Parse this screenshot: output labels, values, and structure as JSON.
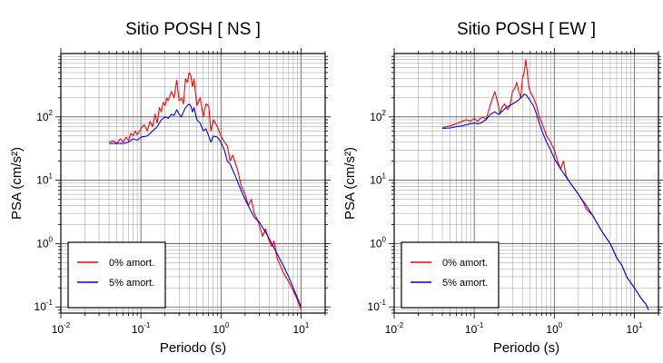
{
  "chart_data": [
    {
      "type": "line",
      "title": "Sitio POSH [ NS ]",
      "xlabel": "Periodo (s)",
      "ylabel": "PSA (cm/s²)",
      "xscale": "log",
      "yscale": "log",
      "xlim": [
        0.01,
        20
      ],
      "ylim": [
        0.08,
        1000
      ],
      "grid": true,
      "legend_position": "bottom-left",
      "x_ticks": [
        {
          "mant": "10",
          "exp": "-2"
        },
        {
          "mant": "10",
          "exp": "-1"
        },
        {
          "mant": "10",
          "exp": "0"
        },
        {
          "mant": "10",
          "exp": "1"
        }
      ],
      "y_ticks": [
        {
          "mant": "10",
          "exp": "-1"
        },
        {
          "mant": "10",
          "exp": "0"
        },
        {
          "mant": "10",
          "exp": "1"
        },
        {
          "mant": "10",
          "exp": "2"
        }
      ],
      "series": [
        {
          "name": "0% amort.",
          "color": "#ff0000",
          "points": [
            [
              0.04,
              40
            ],
            [
              0.045,
              42
            ],
            [
              0.05,
              38
            ],
            [
              0.055,
              45
            ],
            [
              0.06,
              40
            ],
            [
              0.065,
              48
            ],
            [
              0.07,
              42
            ],
            [
              0.075,
              55
            ],
            [
              0.08,
              50
            ],
            [
              0.085,
              60
            ],
            [
              0.09,
              52
            ],
            [
              0.1,
              65
            ],
            [
              0.11,
              75
            ],
            [
              0.12,
              60
            ],
            [
              0.13,
              85
            ],
            [
              0.14,
              70
            ],
            [
              0.15,
              110
            ],
            [
              0.16,
              80
            ],
            [
              0.17,
              140
            ],
            [
              0.18,
              120
            ],
            [
              0.19,
              170
            ],
            [
              0.2,
              150
            ],
            [
              0.21,
              200
            ],
            [
              0.22,
              180
            ],
            [
              0.24,
              250
            ],
            [
              0.26,
              200
            ],
            [
              0.28,
              380
            ],
            [
              0.3,
              180
            ],
            [
              0.32,
              200
            ],
            [
              0.34,
              160
            ],
            [
              0.36,
              400
            ],
            [
              0.38,
              350
            ],
            [
              0.4,
              500
            ],
            [
              0.42,
              450
            ],
            [
              0.44,
              300
            ],
            [
              0.46,
              400
            ],
            [
              0.5,
              150
            ],
            [
              0.55,
              200
            ],
            [
              0.6,
              100
            ],
            [
              0.65,
              160
            ],
            [
              0.7,
              150
            ],
            [
              0.75,
              60
            ],
            [
              0.8,
              90
            ],
            [
              0.85,
              80
            ],
            [
              0.9,
              70
            ],
            [
              1.0,
              50
            ],
            [
              1.1,
              40
            ],
            [
              1.2,
              35
            ],
            [
              1.3,
              20
            ],
            [
              1.4,
              25
            ],
            [
              1.6,
              15
            ],
            [
              1.8,
              8
            ],
            [
              2.0,
              6
            ],
            [
              2.2,
              4
            ],
            [
              2.4,
              5
            ],
            [
              2.6,
              3
            ],
            [
              2.8,
              2.5
            ],
            [
              3.0,
              2
            ],
            [
              3.3,
              1.3
            ],
            [
              3.6,
              1.7
            ],
            [
              4.0,
              1.1
            ],
            [
              4.3,
              0.9
            ],
            [
              4.6,
              1.1
            ],
            [
              5.0,
              0.6
            ],
            [
              6.0,
              0.35
            ],
            [
              7.0,
              0.25
            ],
            [
              8.0,
              0.18
            ],
            [
              9.0,
              0.13
            ],
            [
              10.0,
              0.09
            ]
          ]
        },
        {
          "name": "5% amort.",
          "color": "#0000ff",
          "points": [
            [
              0.04,
              38
            ],
            [
              0.05,
              38
            ],
            [
              0.06,
              38
            ],
            [
              0.07,
              40
            ],
            [
              0.08,
              45
            ],
            [
              0.09,
              43
            ],
            [
              0.1,
              48
            ],
            [
              0.12,
              50
            ],
            [
              0.14,
              60
            ],
            [
              0.16,
              70
            ],
            [
              0.18,
              90
            ],
            [
              0.2,
              100
            ],
            [
              0.22,
              95
            ],
            [
              0.24,
              110
            ],
            [
              0.26,
              105
            ],
            [
              0.28,
              130
            ],
            [
              0.3,
              110
            ],
            [
              0.32,
              100
            ],
            [
              0.34,
              120
            ],
            [
              0.36,
              140
            ],
            [
              0.38,
              150
            ],
            [
              0.4,
              160
            ],
            [
              0.42,
              150
            ],
            [
              0.44,
              120
            ],
            [
              0.46,
              140
            ],
            [
              0.5,
              90
            ],
            [
              0.55,
              80
            ],
            [
              0.6,
              60
            ],
            [
              0.65,
              65
            ],
            [
              0.7,
              50
            ],
            [
              0.75,
              40
            ],
            [
              0.8,
              50
            ],
            [
              0.9,
              48
            ],
            [
              1.0,
              40
            ],
            [
              1.1,
              30
            ],
            [
              1.2,
              20
            ],
            [
              1.3,
              18
            ],
            [
              1.5,
              12
            ],
            [
              1.7,
              8
            ],
            [
              2.0,
              5
            ],
            [
              2.3,
              3.5
            ],
            [
              2.6,
              2.6
            ],
            [
              3.0,
              2.2
            ],
            [
              3.5,
              1.6
            ],
            [
              4.0,
              1.2
            ],
            [
              4.5,
              0.9
            ],
            [
              5.0,
              0.7
            ],
            [
              6.0,
              0.45
            ],
            [
              7.0,
              0.3
            ],
            [
              8.0,
              0.2
            ],
            [
              9.0,
              0.14
            ],
            [
              10.0,
              0.1
            ]
          ]
        }
      ]
    },
    {
      "type": "line",
      "title": "Sitio POSH [ EW ]",
      "xlabel": "Periodo (s)",
      "ylabel": "PSA (cm/s²)",
      "xscale": "log",
      "yscale": "log",
      "xlim": [
        0.01,
        20
      ],
      "ylim": [
        0.08,
        1000
      ],
      "grid": true,
      "legend_position": "bottom-left",
      "x_ticks": [
        {
          "mant": "10",
          "exp": "-2"
        },
        {
          "mant": "10",
          "exp": "-1"
        },
        {
          "mant": "10",
          "exp": "0"
        },
        {
          "mant": "10",
          "exp": "1"
        }
      ],
      "y_ticks": [
        {
          "mant": "10",
          "exp": "-1"
        },
        {
          "mant": "10",
          "exp": "0"
        },
        {
          "mant": "10",
          "exp": "1"
        },
        {
          "mant": "10",
          "exp": "2"
        }
      ],
      "series": [
        {
          "name": "0% amort.",
          "color": "#ff0000",
          "points": [
            [
              0.04,
              68
            ],
            [
              0.05,
              72
            ],
            [
              0.06,
              78
            ],
            [
              0.07,
              85
            ],
            [
              0.08,
              90
            ],
            [
              0.09,
              85
            ],
            [
              0.1,
              95
            ],
            [
              0.11,
              85
            ],
            [
              0.12,
              95
            ],
            [
              0.13,
              100
            ],
            [
              0.14,
              90
            ],
            [
              0.15,
              120
            ],
            [
              0.16,
              160
            ],
            [
              0.17,
              200
            ],
            [
              0.18,
              250
            ],
            [
              0.19,
              200
            ],
            [
              0.2,
              150
            ],
            [
              0.21,
              110
            ],
            [
              0.22,
              140
            ],
            [
              0.24,
              160
            ],
            [
              0.26,
              130
            ],
            [
              0.28,
              150
            ],
            [
              0.3,
              250
            ],
            [
              0.32,
              280
            ],
            [
              0.34,
              350
            ],
            [
              0.36,
              250
            ],
            [
              0.38,
              200
            ],
            [
              0.4,
              400
            ],
            [
              0.42,
              500
            ],
            [
              0.44,
              800
            ],
            [
              0.46,
              500
            ],
            [
              0.48,
              300
            ],
            [
              0.5,
              250
            ],
            [
              0.55,
              200
            ],
            [
              0.6,
              150
            ],
            [
              0.65,
              100
            ],
            [
              0.7,
              80
            ],
            [
              0.8,
              50
            ],
            [
              0.9,
              40
            ],
            [
              1.0,
              30
            ],
            [
              1.1,
              20
            ],
            [
              1.2,
              15
            ],
            [
              1.3,
              20
            ],
            [
              1.4,
              12
            ],
            [
              1.5,
              10
            ],
            [
              1.7,
              8
            ],
            [
              2.0,
              6
            ],
            [
              2.3,
              4.5
            ],
            [
              2.5,
              3.5
            ],
            [
              3.0,
              2.8
            ],
            [
              3.5,
              2.0
            ],
            [
              4.0,
              1.5
            ],
            [
              5.0,
              1.0
            ],
            [
              6.0,
              0.6
            ],
            [
              7.0,
              0.45
            ],
            [
              8.0,
              0.3
            ],
            [
              10.0,
              0.2
            ],
            [
              12.0,
              0.14
            ],
            [
              14.0,
              0.11
            ],
            [
              15.0,
              0.09
            ]
          ]
        },
        {
          "name": "5% amort.",
          "color": "#0000ff",
          "points": [
            [
              0.04,
              66
            ],
            [
              0.05,
              67
            ],
            [
              0.06,
              70
            ],
            [
              0.07,
              72
            ],
            [
              0.08,
              75
            ],
            [
              0.09,
              78
            ],
            [
              0.1,
              80
            ],
            [
              0.11,
              78
            ],
            [
              0.12,
              80
            ],
            [
              0.14,
              90
            ],
            [
              0.16,
              110
            ],
            [
              0.18,
              120
            ],
            [
              0.2,
              110
            ],
            [
              0.22,
              120
            ],
            [
              0.25,
              140
            ],
            [
              0.3,
              160
            ],
            [
              0.35,
              180
            ],
            [
              0.4,
              210
            ],
            [
              0.42,
              230
            ],
            [
              0.45,
              220
            ],
            [
              0.5,
              180
            ],
            [
              0.55,
              150
            ],
            [
              0.6,
              110
            ],
            [
              0.65,
              80
            ],
            [
              0.7,
              60
            ],
            [
              0.8,
              40
            ],
            [
              0.9,
              30
            ],
            [
              1.0,
              22
            ],
            [
              1.2,
              15
            ],
            [
              1.5,
              10
            ],
            [
              1.7,
              8
            ],
            [
              2.0,
              6
            ],
            [
              2.5,
              4
            ],
            [
              3.0,
              2.8
            ],
            [
              3.5,
              2.0
            ],
            [
              4.0,
              1.5
            ],
            [
              5.0,
              1.0
            ],
            [
              6.0,
              0.6
            ],
            [
              7.0,
              0.45
            ],
            [
              8.0,
              0.3
            ],
            [
              10.0,
              0.2
            ],
            [
              12.0,
              0.14
            ],
            [
              14.0,
              0.11
            ],
            [
              15.0,
              0.09
            ]
          ]
        }
      ]
    }
  ]
}
